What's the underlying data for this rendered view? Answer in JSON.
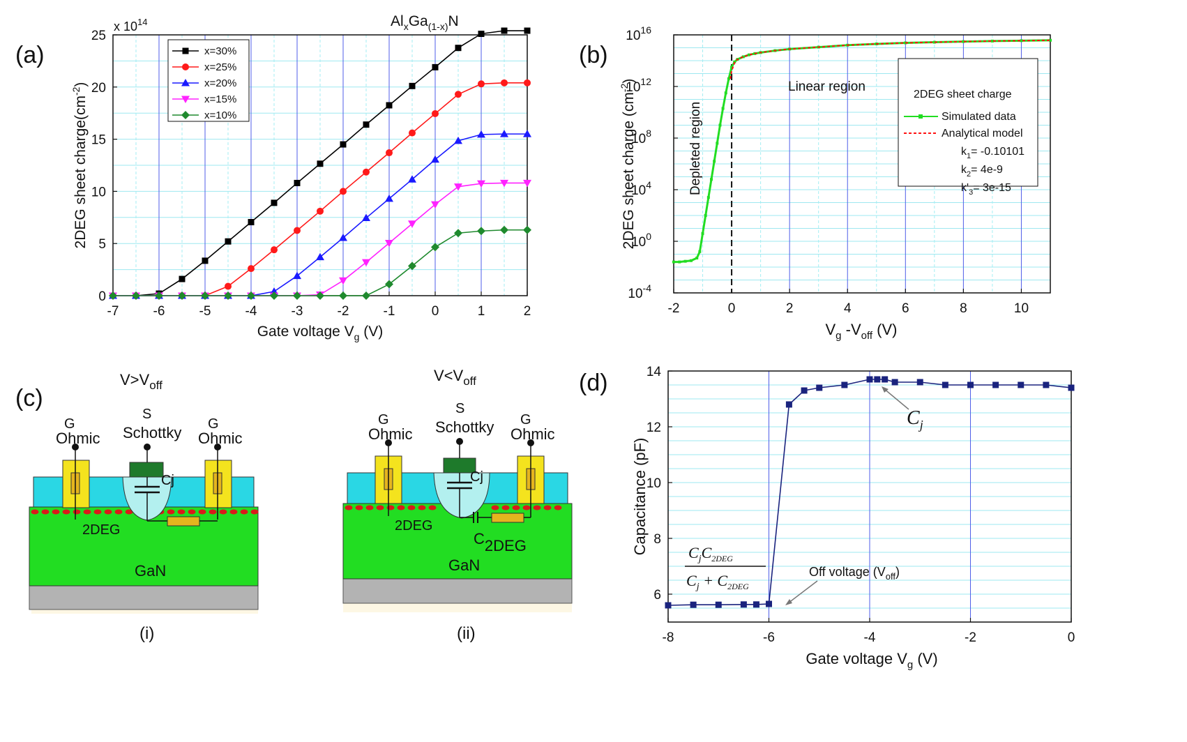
{
  "colors": {
    "s30": "#000000",
    "s25": "#ff1a1a",
    "s20": "#1a1aff",
    "s15": "#ff22ff",
    "s10": "#1f8a2e",
    "sim": "#22dd22",
    "ana": "#ff1111",
    "cap": "#1a237e",
    "cyan": "#2ad7e4",
    "green": "#22dd22",
    "yellow": "#f4e31e",
    "gray": "#b3b3b3",
    "dkgreen": "#1e7a2b",
    "pale": "#b3f0ef",
    "dot": "#d91a1a",
    "res": "#e5b51e"
  },
  "panel_a": {
    "label": "(a)",
    "exponent": "x 10",
    "exponent_sup": "14",
    "title_prefix": "Al",
    "title_sub1": "x",
    "title_mid": "Ga",
    "title_sub2": "(1-x)",
    "title_suffix": "N",
    "ylabel_main": "2DEG sheet charge(cm",
    "ylabel_sup": "-2",
    "ylabel_end": ")",
    "xlabel_main": "Gate voltage V",
    "xlabel_sub": "g",
    "xlabel_end": " (V)"
  },
  "panel_b": {
    "label": "(b)",
    "ylabel_main": "2DEG sheet charge (cm",
    "ylabel_sup": "-2",
    "ylabel_end": ")",
    "xlabel_a": "V",
    "xlabel_a_sub": "g",
    "xlabel_b": " -V",
    "xlabel_b_sub": "off",
    "xlabel_end": " (V)",
    "ann_depleted": "Depleted region",
    "ann_linear": "Linear region",
    "legend_title": "2DEG sheet charge",
    "legend_sim": "Simulated data",
    "legend_ana": "Analytical model",
    "k1_a": "k",
    "k1_sub": "1",
    "k1_b": "= -0.10101",
    "k2_a": "k",
    "k2_sub": "2",
    "k2_b": "= 4e-9",
    "k3_a": "k'",
    "k3_sub": "3",
    "k3_b": "= 3e-15",
    "ytick_base": "10"
  },
  "panel_c": {
    "label": "(c)",
    "cap_i": "(i)",
    "cap_ii": "(ii)",
    "cond_i_a": "V>V",
    "cond_i_sub": "off",
    "cond_ii_a": "V<V",
    "cond_ii_sub": "off",
    "g_label": "G",
    "s_label": "S",
    "ohmic": "Ohmic",
    "schottky": "Schottky",
    "cj": "Cj",
    "twodeg": "2DEG",
    "gan": "GaN",
    "c2deg_a": "C",
    "c2deg_b": "2DEG"
  },
  "panel_d": {
    "label": "(d)",
    "ylabel": "Capacitance (pF)",
    "xlabel_main": "Gate voltage V",
    "xlabel_sub": "g",
    "xlabel_end": " (V)",
    "cj_a": "C",
    "cj_sub": "j",
    "off_a": "Off voltage (V",
    "off_sub": "off",
    "off_b": ")",
    "frac_num": "C",
    "frac_num_j": "j",
    "frac_num_c": "C",
    "frac_num_sub": "2DEG",
    "frac_den": "C",
    "frac_den_j": "j",
    "frac_den_plus": " + C",
    "frac_den_sub": "2DEG"
  },
  "chart_data": [
    {
      "id": "a",
      "type": "line",
      "title": "AlxGa(1-x)N",
      "xlabel": "Gate voltage Vg (V)",
      "ylabel": "2DEG sheet charge(cm-2)",
      "y_multiplier": "x 10^14",
      "xlim": [
        -7,
        2
      ],
      "ylim": [
        0,
        25
      ],
      "xticks": [
        -7,
        -6,
        -5,
        -4,
        -3,
        -2,
        -1,
        0,
        1,
        2
      ],
      "yticks": [
        0,
        5,
        10,
        15,
        20,
        25
      ],
      "x": [
        -7,
        -6.5,
        -6,
        -5.5,
        -5,
        -4.5,
        -4,
        -3.5,
        -3,
        -2.5,
        -2,
        -1.5,
        -1,
        -0.5,
        0,
        0.5,
        1,
        1.5,
        2
      ],
      "series": [
        {
          "name": "x=30%",
          "marker": "square",
          "color_key": "s30",
          "values": [
            0,
            0,
            0.2,
            1.6,
            3.35,
            5.2,
            7.05,
            8.9,
            10.8,
            12.65,
            14.5,
            16.4,
            18.25,
            20.1,
            21.9,
            23.75,
            25.1,
            25.4,
            25.4
          ]
        },
        {
          "name": "x=25%",
          "marker": "circle",
          "color_key": "s25",
          "values": [
            0,
            0,
            0,
            0,
            0,
            0.9,
            2.6,
            4.4,
            6.25,
            8.1,
            10.0,
            11.85,
            13.7,
            15.6,
            17.45,
            19.3,
            20.3,
            20.4,
            20.4
          ]
        },
        {
          "name": "x=20%",
          "marker": "triangle-up",
          "color_key": "s20",
          "values": [
            0,
            0,
            0,
            0,
            0,
            0,
            0,
            0.4,
            1.9,
            3.7,
            5.55,
            7.45,
            9.3,
            11.15,
            13.05,
            14.85,
            15.45,
            15.5,
            15.5
          ]
        },
        {
          "name": "x=15%",
          "marker": "triangle-down",
          "color_key": "s15",
          "values": [
            0,
            0,
            0,
            0,
            0,
            0,
            0,
            0,
            0,
            0.1,
            1.45,
            3.2,
            5.05,
            6.9,
            8.75,
            10.45,
            10.75,
            10.8,
            10.8
          ]
        },
        {
          "name": "x=10%",
          "marker": "diamond",
          "color_key": "s10",
          "values": [
            0,
            0,
            0,
            0,
            0,
            0,
            0,
            0,
            0,
            0,
            0,
            0,
            1.1,
            2.85,
            4.65,
            6.0,
            6.2,
            6.3,
            6.3
          ]
        }
      ]
    },
    {
      "id": "b",
      "type": "line",
      "yscale": "log",
      "xlabel": "Vg -Voff (V)",
      "ylabel": "2DEG sheet charge (cm-2)",
      "xlim": [
        -2,
        11
      ],
      "ylim_exp": [
        -4,
        16
      ],
      "xticks": [
        -2,
        0,
        2,
        4,
        6,
        8,
        10
      ],
      "ytick_exps": [
        -4,
        0,
        4,
        8,
        12,
        16
      ],
      "series": [
        {
          "name": "Simulated data",
          "color_key": "sim",
          "x": [
            -2,
            -1.8,
            -1.6,
            -1.4,
            -1.2,
            -1.1,
            -1.0,
            -0.9,
            -0.8,
            -0.7,
            -0.6,
            -0.5,
            -0.4,
            -0.3,
            -0.2,
            -0.1,
            0,
            0.1,
            0.2,
            0.4,
            0.6,
            0.8,
            1,
            1.5,
            2,
            3,
            4,
            5,
            6,
            7,
            8,
            9,
            10,
            11
          ],
          "log10y": [
            -1.6,
            -1.6,
            -1.55,
            -1.5,
            -1.3,
            -0.8,
            0.6,
            2.0,
            3.4,
            4.8,
            6.2,
            7.6,
            9.0,
            10.3,
            11.5,
            12.6,
            13.5,
            13.9,
            14.1,
            14.3,
            14.45,
            14.55,
            14.63,
            14.78,
            14.9,
            15.05,
            15.2,
            15.3,
            15.38,
            15.43,
            15.48,
            15.52,
            15.55,
            15.58
          ]
        },
        {
          "name": "Analytical model",
          "color_key": "ana",
          "dashed": true,
          "x": [
            -0.05,
            0,
            0.1,
            0.2,
            0.4,
            0.6,
            0.8,
            1,
            1.5,
            2,
            3,
            4,
            5,
            6,
            7,
            8,
            9,
            10,
            11
          ],
          "log10y": [
            12.6,
            13.2,
            13.85,
            14.1,
            14.3,
            14.45,
            14.55,
            14.63,
            14.78,
            14.9,
            15.05,
            15.2,
            15.3,
            15.38,
            15.43,
            15.48,
            15.52,
            15.55,
            15.58
          ]
        }
      ],
      "annotations": [
        "Depleted region",
        "Linear region"
      ],
      "params": {
        "k1": -0.10101,
        "k2": "4e-9",
        "k'3": "3e-15"
      }
    },
    {
      "id": "d",
      "type": "line",
      "xlabel": "Gate voltage Vg (V)",
      "ylabel": "Capacitance (pF)",
      "xlim": [
        -8,
        0
      ],
      "ylim": [
        5,
        14
      ],
      "xticks": [
        -8,
        -6,
        -4,
        -2,
        0
      ],
      "yticks": [
        6,
        8,
        10,
        12,
        14
      ],
      "series": [
        {
          "name": "Capacitance",
          "color_key": "cap",
          "marker": "square",
          "x": [
            -8,
            -7.5,
            -7,
            -6.5,
            -6.25,
            -6,
            -5.6,
            -5.3,
            -5,
            -4.5,
            -4,
            -3.85,
            -3.7,
            -3.5,
            -3,
            -2.5,
            -2,
            -1.5,
            -1,
            -0.5,
            0
          ],
          "y": [
            5.6,
            5.62,
            5.62,
            5.63,
            5.63,
            5.65,
            12.8,
            13.3,
            13.4,
            13.5,
            13.7,
            13.7,
            13.7,
            13.6,
            13.6,
            13.5,
            13.5,
            13.5,
            13.5,
            13.5,
            13.4
          ]
        }
      ],
      "annotations": [
        "Cj",
        "Off voltage (Voff)",
        "CjC2DEG / (Cj + C2DEG)"
      ]
    }
  ]
}
